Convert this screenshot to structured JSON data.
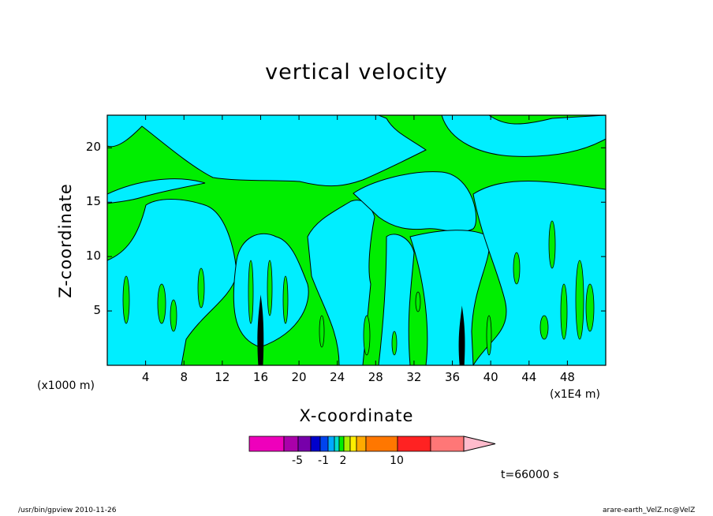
{
  "chart_data": {
    "type": "heatmap",
    "title": "vertical velocity",
    "xlabel": "X-coordinate",
    "ylabel": "Z-coordinate",
    "x_unit_left": "(x1000 m)",
    "x_unit_right": "(x1E4 m)",
    "xlim": [
      0,
      52
    ],
    "ylim": [
      0,
      23
    ],
    "x_ticks": [
      4,
      8,
      12,
      16,
      20,
      24,
      28,
      32,
      36,
      40,
      44,
      48
    ],
    "y_ticks": [
      5,
      10,
      15,
      20
    ],
    "fill_colors": {
      "negative": "#00eeff",
      "positive": "#00ee00",
      "strong_updraft": "#000000",
      "contour_line": "#000000"
    },
    "updraft_cores": [
      {
        "x": 16,
        "z_range": [
          0,
          6.5
        ]
      },
      {
        "x": 37,
        "z_range": [
          0,
          5.5
        ]
      }
    ],
    "colorbar": {
      "colors": [
        "#ee00bb",
        "#aa00aa",
        "#7700aa",
        "#0000cc",
        "#0044ee",
        "#00aaff",
        "#00ddcc",
        "#00ee00",
        "#aaee00",
        "#ffee00",
        "#ffaa00",
        "#ff7700",
        "#ff2222",
        "#ff7777",
        "#ffbbcc"
      ],
      "tick_labels": [
        "-5",
        "-1",
        "2",
        "10"
      ]
    },
    "annotation_time": "t=66000 s",
    "grid": false,
    "legend": "colorbar-bottom"
  },
  "footer": {
    "left": "/usr/bin/gpview   2010-11-26",
    "right": "arare-earth_VelZ.nc@VelZ"
  }
}
